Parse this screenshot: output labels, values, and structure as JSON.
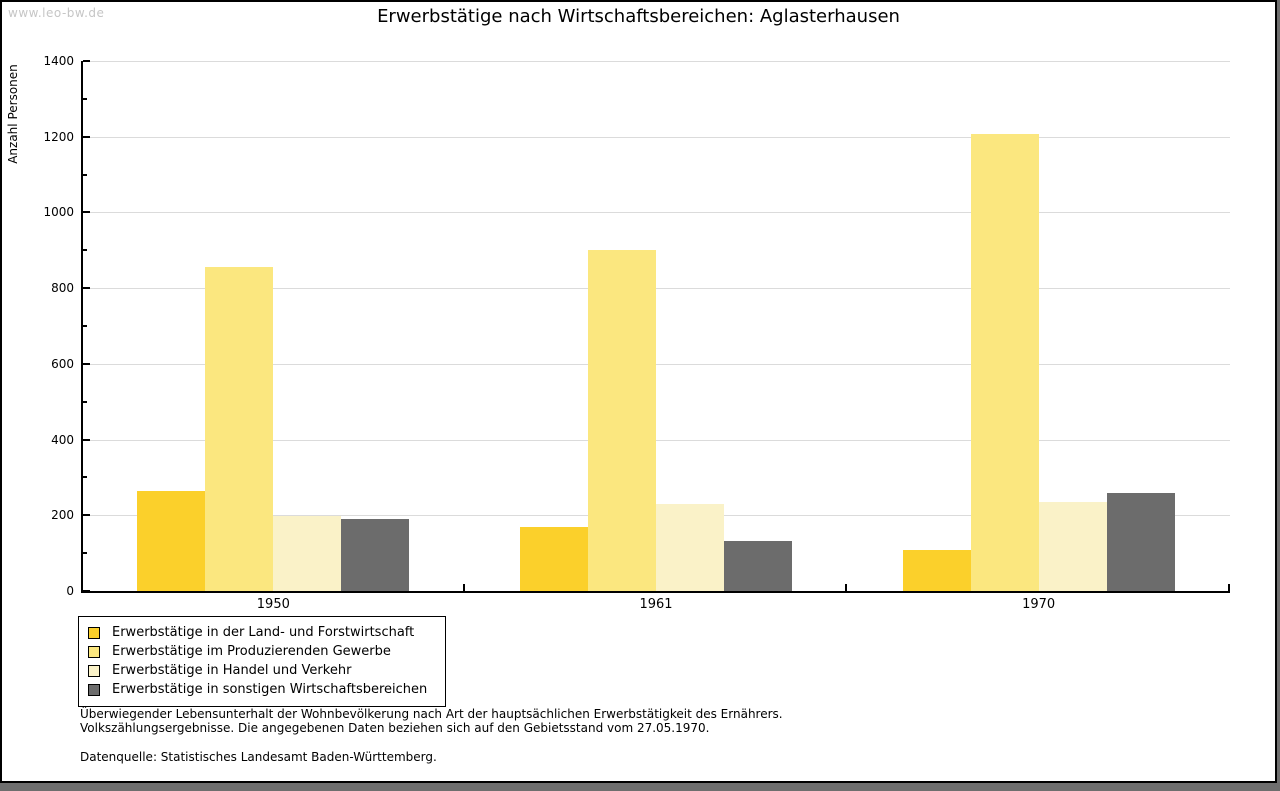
{
  "watermark": "www.leo-bw.de",
  "title": "Erwerbstätige nach Wirtschaftsbereichen: Aglasterhausen",
  "footnotes": {
    "line1": "Überwiegender Lebensunterhalt der Wohnbevölkerung nach Art der hauptsächlichen Erwerbstätigkeit des Ernährers.",
    "line2": "Volkszählungsergebnisse. Die angegebenen Daten beziehen sich auf den Gebietsstand vom 27.05.1970.",
    "source": "Datenquelle: Statistisches Landesamt Baden-Württemberg."
  },
  "colors": {
    "background": "#FFFFFF",
    "backdrop": "#6E6E6E",
    "border": "#000000",
    "gridline": "#DBDBDB",
    "watermark": "#C6C6C6",
    "text": "#000000"
  },
  "chart_data": {
    "type": "bar",
    "title": "Erwerbstätige nach Wirtschaftsbereichen: Aglasterhausen",
    "xlabel": "",
    "ylabel": "Anzahl Personen",
    "ylim": [
      0,
      1400
    ],
    "ytick_step": 200,
    "ytick_minor_step": 100,
    "grid": true,
    "legend_position": "bottom-left",
    "categories": [
      "1950",
      "1961",
      "1970"
    ],
    "series": [
      {
        "name": "Erwerbstätige in der Land- und Forstwirtschaft",
        "color": "#FBD02B",
        "values": [
          265,
          170,
          109
        ]
      },
      {
        "name": "Erwerbstätige im Produzierenden Gewerbe",
        "color": "#FBE77F",
        "values": [
          856,
          901,
          1206
        ]
      },
      {
        "name": "Erwerbstätige in Handel und Verkehr",
        "color": "#FAF2C8",
        "values": [
          198,
          230,
          234
        ]
      },
      {
        "name": "Erwerbstätige in sonstigen Wirtschaftsbereichen",
        "color": "#6C6C6C",
        "values": [
          189,
          133,
          258
        ]
      }
    ]
  }
}
